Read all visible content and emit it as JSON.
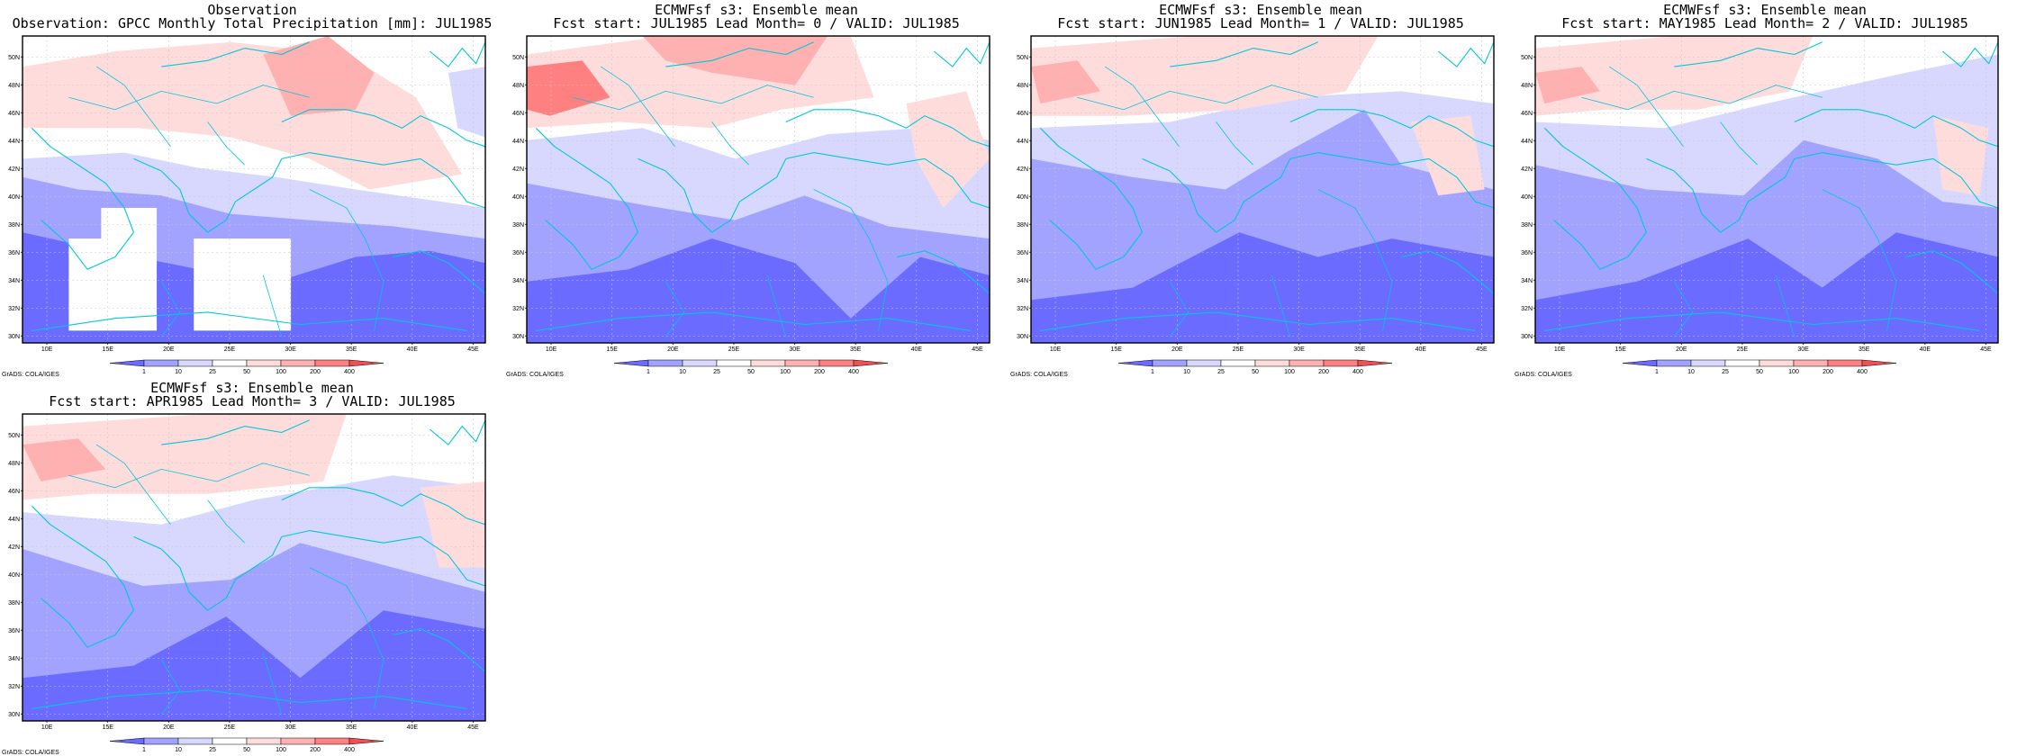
{
  "chart_data": [
    {
      "type": "heatmap",
      "title": "Observation",
      "subtitle": "Observation: GPCC Monthly Total Precipitation [mm]: JUL1985",
      "x_ticks": [
        "10E",
        "15E",
        "20E",
        "25E",
        "30E",
        "35E",
        "40E",
        "45E"
      ],
      "y_ticks": [
        "30N",
        "32N",
        "34N",
        "36N",
        "38N",
        "40N",
        "42N",
        "44N",
        "46N",
        "48N",
        "50N"
      ],
      "xlim": [
        8,
        46
      ],
      "ylim": [
        29.5,
        51.5
      ],
      "grid": true,
      "colorbar": {
        "levels": [
          "1",
          "10",
          "25",
          "50",
          "100",
          "200",
          "400"
        ],
        "orientation": "horizontal",
        "placement": "bottom"
      },
      "credit": "GrADS: COLA/IGES",
      "missing_boxes": true
    },
    {
      "type": "heatmap",
      "title": "ECMWFsf s3: Ensemble mean",
      "subtitle": "Fcst start: JUL1985  Lead Month= 0 / VALID: JUL1985",
      "x_ticks": [
        "10E",
        "15E",
        "20E",
        "25E",
        "30E",
        "35E",
        "40E",
        "45E"
      ],
      "y_ticks": [
        "30N",
        "32N",
        "34N",
        "36N",
        "38N",
        "40N",
        "42N",
        "44N",
        "46N",
        "48N",
        "50N"
      ],
      "xlim": [
        8,
        46
      ],
      "ylim": [
        29.5,
        51.5
      ],
      "grid": true,
      "colorbar": {
        "levels": [
          "1",
          "10",
          "25",
          "50",
          "100",
          "200",
          "400"
        ],
        "orientation": "horizontal",
        "placement": "bottom"
      },
      "credit": "GrADS: COLA/IGES"
    },
    {
      "type": "heatmap",
      "title": "ECMWFsf s3: Ensemble mean",
      "subtitle": "Fcst start: JUN1985  Lead Month= 1 / VALID: JUL1985",
      "x_ticks": [
        "10E",
        "15E",
        "20E",
        "25E",
        "30E",
        "35E",
        "40E",
        "45E"
      ],
      "y_ticks": [
        "30N",
        "32N",
        "34N",
        "36N",
        "38N",
        "40N",
        "42N",
        "44N",
        "46N",
        "48N",
        "50N"
      ],
      "xlim": [
        8,
        46
      ],
      "ylim": [
        29.5,
        51.5
      ],
      "grid": true,
      "colorbar": {
        "levels": [
          "1",
          "10",
          "25",
          "50",
          "100",
          "200",
          "400"
        ],
        "orientation": "horizontal",
        "placement": "bottom"
      },
      "credit": "GrADS: COLA/IGES"
    },
    {
      "type": "heatmap",
      "title": "ECMWFsf s3: Ensemble mean",
      "subtitle": "Fcst start: MAY1985  Lead Month= 2 / VALID: JUL1985",
      "x_ticks": [
        "10E",
        "15E",
        "20E",
        "25E",
        "30E",
        "35E",
        "40E",
        "45E"
      ],
      "y_ticks": [
        "30N",
        "32N",
        "34N",
        "36N",
        "38N",
        "40N",
        "42N",
        "44N",
        "46N",
        "48N",
        "50N"
      ],
      "xlim": [
        8,
        46
      ],
      "ylim": [
        29.5,
        51.5
      ],
      "grid": true,
      "colorbar": {
        "levels": [
          "1",
          "10",
          "25",
          "50",
          "100",
          "200",
          "400"
        ],
        "orientation": "horizontal",
        "placement": "bottom"
      },
      "credit": "GrADS: COLA/IGES"
    },
    {
      "type": "heatmap",
      "title": "ECMWFsf s3: Ensemble mean",
      "subtitle": "Fcst start: APR1985  Lead Month= 3 / VALID: JUL1985",
      "x_ticks": [
        "10E",
        "15E",
        "20E",
        "25E",
        "30E",
        "35E",
        "40E",
        "45E"
      ],
      "y_ticks": [
        "30N",
        "32N",
        "34N",
        "36N",
        "38N",
        "40N",
        "42N",
        "44N",
        "46N",
        "48N",
        "50N"
      ],
      "xlim": [
        8,
        46
      ],
      "ylim": [
        29.5,
        51.5
      ],
      "grid": true,
      "colorbar": {
        "levels": [
          "1",
          "10",
          "25",
          "50",
          "100",
          "200",
          "400"
        ],
        "orientation": "horizontal",
        "placement": "bottom"
      },
      "credit": "GrADS: COLA/IGES"
    }
  ],
  "colors": {
    "dry3": "#6b6bff",
    "dry2": "#a2a2ff",
    "dry1": "#d8d8ff",
    "neutral": "#ffffff",
    "wet1": "#ffdcdc",
    "wet2": "#ffb0b0",
    "wet3": "#ff8080",
    "wet4": "#f05050",
    "coast": "#00c8d8",
    "grid": "#c8c8c8"
  }
}
